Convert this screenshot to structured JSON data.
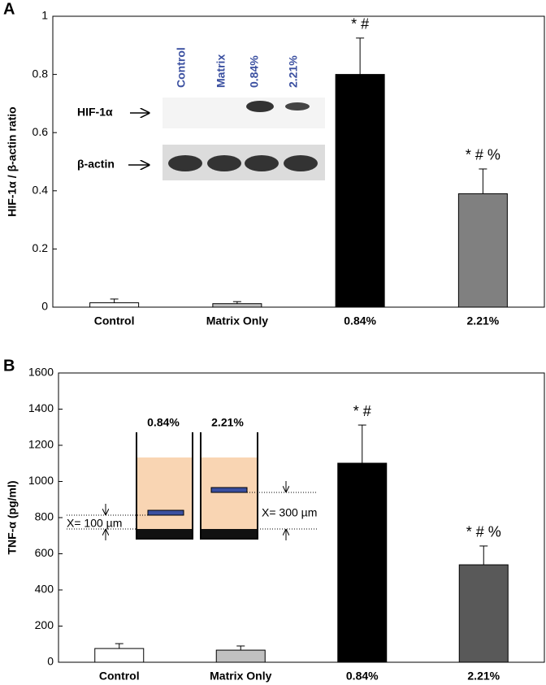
{
  "chart_data": [
    {
      "type": "bar",
      "panel": "A",
      "ylabel": "HIF-1α / β-actin ratio",
      "categories": [
        "Control",
        "Matrix Only",
        "0.84%",
        "2.21%"
      ],
      "values": [
        0.015,
        0.012,
        0.8,
        0.39
      ],
      "errors": [
        0.013,
        0.007,
        0.125,
        0.085
      ],
      "colors": [
        "#ffffff",
        "#c0c0c0",
        "#000000",
        "#808080"
      ],
      "ylim": [
        0,
        1
      ],
      "yticks": [
        0,
        0.2,
        0.4,
        0.6,
        0.8,
        1
      ],
      "annotations": [
        {
          "text": "* #",
          "category": "0.84%"
        },
        {
          "text": "* # %",
          "category": "2.21%"
        }
      ],
      "inset": {
        "lanes": [
          "Control",
          "Matrix",
          "0.84%",
          "2.21%"
        ],
        "rows": [
          "HIF-1α",
          "β-actin"
        ]
      }
    },
    {
      "type": "bar",
      "panel": "B",
      "ylabel": "TNF-α (pg/ml)",
      "categories": [
        "Control",
        "Matrix Only",
        "0.84%",
        "2.21%"
      ],
      "values": [
        76,
        67,
        1101,
        539
      ],
      "errors": [
        27,
        23,
        211,
        104
      ],
      "colors": [
        "#ffffff",
        "#c0c0c0",
        "#000000",
        "#595959"
      ],
      "ylim": [
        0,
        1600
      ],
      "yticks": [
        0,
        200,
        400,
        600,
        800,
        1000,
        1200,
        1400,
        1600
      ],
      "annotations": [
        {
          "text": "* #",
          "category": "0.84%"
        },
        {
          "text": "* # %",
          "category": "2.21%"
        }
      ],
      "inset": {
        "labels": [
          "0.84%",
          "2.21%"
        ],
        "distances": [
          "X= 100 µm",
          "X= 300 µm"
        ]
      }
    }
  ]
}
